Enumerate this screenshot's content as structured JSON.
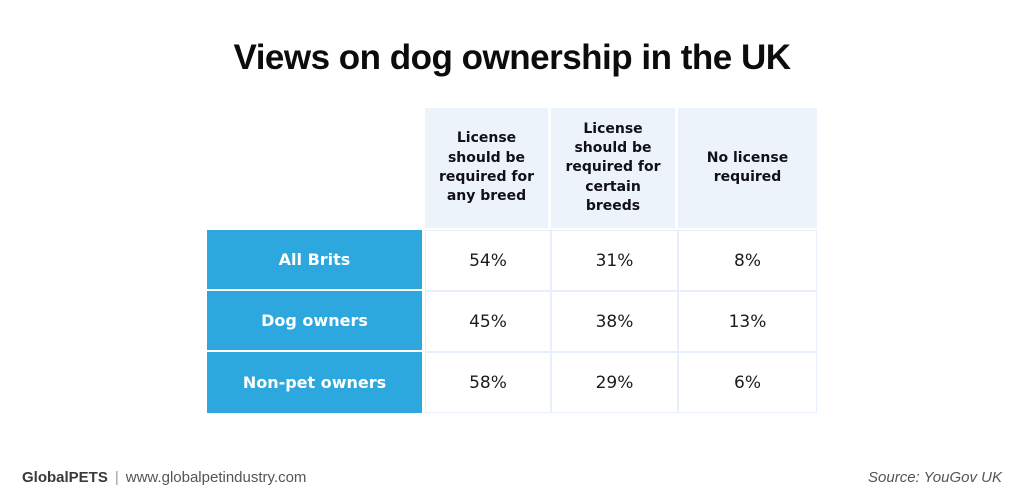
{
  "title": "Views on dog ownership in the UK",
  "chart_data": {
    "type": "table",
    "title": "Views on dog ownership in the UK",
    "unit": "percent",
    "columns": [
      "License should be required for any breed",
      "License should be required for certain breeds",
      "No license required"
    ],
    "row_labels": [
      "All Brits",
      "Dog owners",
      "Non-pet owners"
    ],
    "values": [
      [
        54,
        31,
        8
      ],
      [
        45,
        38,
        13
      ],
      [
        58,
        29,
        6
      ]
    ],
    "cells": [
      [
        "54%",
        "31%",
        "8%"
      ],
      [
        "45%",
        "38%",
        "13%"
      ],
      [
        "58%",
        "29%",
        "6%"
      ]
    ],
    "legend": "none",
    "grid": "off"
  },
  "footer": {
    "brand": "GlobalPETS",
    "separator": "|",
    "website": "www.globalpetindustry.com",
    "source": "Source: YouGov UK"
  },
  "colors": {
    "row_label_blue": "#2ca8de",
    "column_header_bg": "#edf3fb",
    "cell_border": "#e7f0fa",
    "title_text": "#0c0c0c",
    "footer_text": "#4d4d4d"
  }
}
